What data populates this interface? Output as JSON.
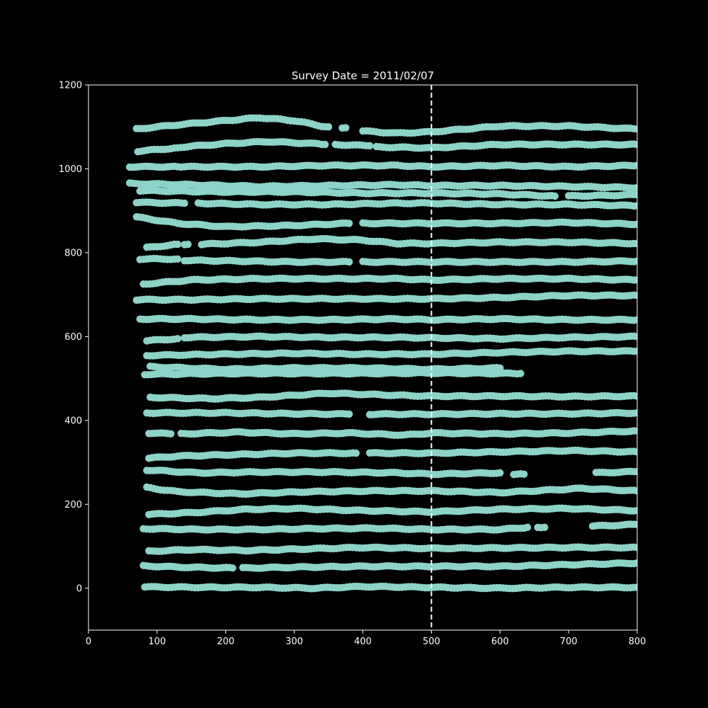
{
  "chart_data": {
    "type": "scatter",
    "title": "Survey Date = 2011/02/07",
    "xlabel": "",
    "ylabel": "",
    "xlim": [
      0,
      800
    ],
    "ylim": [
      -100,
      1200
    ],
    "x_ticks": [
      0,
      100,
      200,
      300,
      400,
      500,
      600,
      700,
      800
    ],
    "y_ticks": [
      0,
      200,
      400,
      600,
      800,
      1000,
      1200
    ],
    "grid": false,
    "point_color": "#8dd3c7",
    "background_color": "#000000",
    "axis_color": "#ffffff",
    "reference_line": {
      "x": 500,
      "style": "dashed",
      "color": "#ffffff"
    },
    "tracks": [
      {
        "x": [
          82,
          160,
          240,
          330,
          400,
          500,
          600,
          700,
          800
        ],
        "y": [
          3,
          2,
          2,
          0,
          4,
          2,
          0,
          2,
          2
        ]
      },
      {
        "x": [
          80,
          140,
          210
        ],
        "y": [
          53,
          50,
          48
        ]
      },
      {
        "x": [
          225,
          300,
          400,
          500,
          600,
          700,
          800
        ],
        "y": [
          48,
          50,
          52,
          52,
          52,
          56,
          60
        ]
      },
      {
        "x": [
          88,
          150,
          230,
          300,
          400,
          500,
          600,
          700,
          800
        ],
        "y": [
          88,
          92,
          90,
          93,
          97,
          95,
          96,
          97,
          97
        ]
      },
      {
        "x": [
          80,
          160,
          250,
          330,
          420,
          500,
          600,
          640
        ],
        "y": [
          142,
          140,
          140,
          142,
          143,
          140,
          140,
          145
        ]
      },
      {
        "x": [
          655,
          665
        ],
        "y": [
          146,
          145
        ]
      },
      {
        "x": [
          735,
          800
        ],
        "y": [
          148,
          152
        ]
      },
      {
        "x": [
          88,
          150,
          230,
          300,
          400,
          500,
          600,
          700,
          800
        ],
        "y": [
          176,
          180,
          188,
          190,
          185,
          182,
          188,
          190,
          185
        ]
      },
      {
        "x": [
          85,
          130,
          220,
          320,
          420,
          500,
          600,
          720,
          800
        ],
        "y": [
          240,
          230,
          225,
          230,
          232,
          232,
          228,
          238,
          232
        ]
      },
      {
        "x": [
          85,
          160,
          250,
          350,
          450,
          500,
          600
        ],
        "y": [
          282,
          275,
          277,
          277,
          275,
          272,
          275
        ]
      },
      {
        "x": [
          620,
          635
        ],
        "y": [
          272,
          272
        ]
      },
      {
        "x": [
          740,
          800
        ],
        "y": [
          275,
          278
        ]
      },
      {
        "x": [
          88,
          130,
          200,
          300,
          390
        ],
        "y": [
          310,
          315,
          318,
          322,
          322
        ]
      },
      {
        "x": [
          410,
          500,
          600,
          700,
          800
        ],
        "y": [
          322,
          322,
          325,
          328,
          325
        ]
      },
      {
        "x": [
          88,
          120
        ],
        "y": [
          370,
          368
        ]
      },
      {
        "x": [
          135,
          220,
          300,
          380,
          460,
          500,
          600,
          700,
          800
        ],
        "y": [
          368,
          372,
          368,
          370,
          365,
          370,
          368,
          370,
          375
        ]
      },
      {
        "x": [
          85,
          200,
          300,
          380
        ],
        "y": [
          418,
          418,
          416,
          415
        ]
      },
      {
        "x": [
          410,
          500,
          600,
          700,
          800
        ],
        "y": [
          415,
          415,
          416,
          416,
          418
        ]
      },
      {
        "x": [
          90,
          180,
          250,
          350,
          450,
          500,
          600,
          700,
          800
        ],
        "y": [
          455,
          452,
          455,
          465,
          460,
          458,
          458,
          457,
          458
        ]
      },
      {
        "x": [
          82,
          200,
          300,
          400,
          500,
          600,
          630
        ],
        "y": [
          510,
          512,
          512,
          512,
          513,
          512,
          512
        ]
      },
      {
        "x": [
          90,
          200,
          300,
          400,
          500,
          600
        ],
        "y": [
          528,
          522,
          525,
          525,
          522,
          525
        ]
      },
      {
        "x": [
          85,
          200,
          300,
          400,
          500,
          600,
          700,
          800
        ],
        "y": [
          555,
          558,
          560,
          558,
          558,
          562,
          565,
          565
        ]
      },
      {
        "x": [
          85,
          130
        ],
        "y": [
          590,
          595
        ]
      },
      {
        "x": [
          140,
          250,
          350,
          450,
          500,
          600,
          700,
          800
        ],
        "y": [
          598,
          600,
          598,
          598,
          597,
          595,
          598,
          600
        ]
      },
      {
        "x": [
          75,
          150,
          250,
          350,
          450,
          500,
          600,
          700,
          800
        ],
        "y": [
          642,
          642,
          640,
          640,
          642,
          640,
          642,
          640,
          640
        ]
      },
      {
        "x": [
          70,
          150,
          250,
          350,
          450,
          500,
          600,
          700,
          800
        ],
        "y": [
          688,
          688,
          690,
          690,
          690,
          690,
          693,
          698,
          698
        ]
      },
      {
        "x": [
          80,
          150,
          250,
          350,
          450,
          500,
          600,
          700,
          800
        ],
        "y": [
          725,
          735,
          738,
          738,
          738,
          735,
          738,
          738,
          735
        ]
      },
      {
        "x": [
          75,
          130
        ],
        "y": [
          785,
          785
        ]
      },
      {
        "x": [
          140,
          220,
          300,
          380
        ],
        "y": [
          782,
          780,
          778,
          778
        ]
      },
      {
        "x": [
          400,
          500,
          600,
          700,
          800
        ],
        "y": [
          778,
          778,
          778,
          778,
          780
        ]
      },
      {
        "x": [
          85,
          130
        ],
        "y": [
          812,
          820
        ]
      },
      {
        "x": [
          140,
          145
        ],
        "y": [
          820,
          820
        ]
      },
      {
        "x": [
          165,
          250,
          330,
          400,
          450,
          500,
          600,
          700,
          800
        ],
        "y": [
          820,
          825,
          833,
          830,
          822,
          822,
          825,
          825,
          822
        ]
      },
      {
        "x": [
          70,
          130,
          200,
          300,
          380
        ],
        "y": [
          885,
          870,
          862,
          865,
          870
        ]
      },
      {
        "x": [
          400,
          500,
          600,
          700,
          800
        ],
        "y": [
          870,
          870,
          870,
          872,
          868
        ]
      },
      {
        "x": [
          70,
          140
        ],
        "y": [
          920,
          918
        ]
      },
      {
        "x": [
          160,
          250,
          350,
          450,
          500,
          600,
          700,
          800
        ],
        "y": [
          918,
          915,
          915,
          918,
          918,
          915,
          915,
          912
        ]
      },
      {
        "x": [
          75,
          200,
          300,
          400,
          500,
          600,
          680
        ],
        "y": [
          948,
          945,
          945,
          942,
          942,
          940,
          935
        ]
      },
      {
        "x": [
          700,
          800
        ],
        "y": [
          935,
          938
        ]
      },
      {
        "x": [
          60,
          150,
          250,
          350,
          450,
          500,
          600,
          700,
          800
        ],
        "y": [
          965,
          962,
          958,
          960,
          962,
          960,
          960,
          958,
          955
        ]
      },
      {
        "x": [
          60,
          130
        ],
        "y": [
          1005,
          1005
        ]
      },
      {
        "x": [
          135,
          250,
          350,
          450,
          500,
          600,
          700,
          800
        ],
        "y": [
          1005,
          1005,
          1008,
          1008,
          1005,
          1008,
          1005,
          1008
        ]
      },
      {
        "x": [
          72,
          130
        ],
        "y": [
          1042,
          1050
        ]
      },
      {
        "x": [
          135,
          200,
          260,
          330,
          345
        ],
        "y": [
          1052,
          1060,
          1065,
          1060,
          1058
        ]
      },
      {
        "x": [
          360,
          410
        ],
        "y": [
          1058,
          1055
        ]
      },
      {
        "x": [
          420,
          500,
          600,
          700,
          800
        ],
        "y": [
          1052,
          1050,
          1058,
          1058,
          1058
        ]
      },
      {
        "x": [
          70,
          130,
          200,
          250,
          300,
          340,
          350
        ],
        "y": [
          1095,
          1105,
          1115,
          1122,
          1115,
          1102,
          1100
        ]
      },
      {
        "x": [
          370,
          375
        ],
        "y": [
          1098,
          1098
        ]
      },
      {
        "x": [
          400,
          450,
          500,
          550,
          600,
          700,
          800
        ],
        "y": [
          1090,
          1085,
          1088,
          1095,
          1102,
          1102,
          1095
        ]
      }
    ]
  }
}
